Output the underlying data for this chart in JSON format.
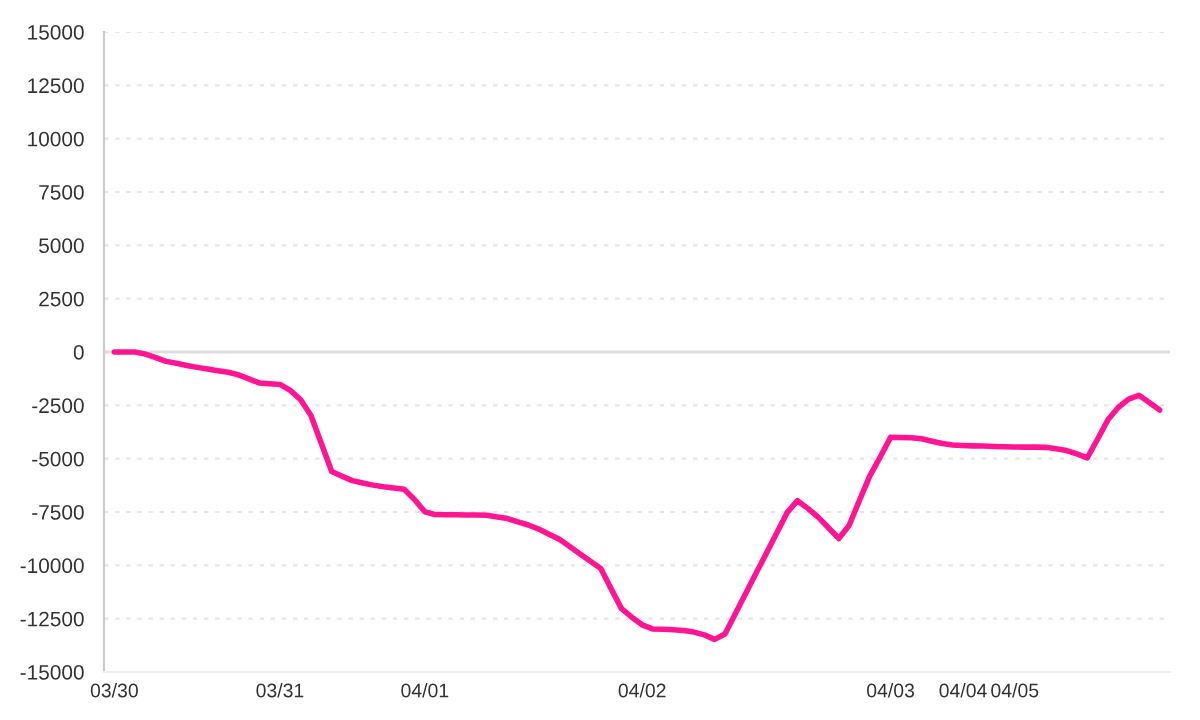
{
  "chart_data": {
    "type": "line",
    "categories": [
      "03/30",
      null,
      null,
      null,
      null,
      null,
      null,
      null,
      null,
      null,
      null,
      null,
      null,
      null,
      null,
      null,
      "03/31",
      null,
      null,
      null,
      null,
      null,
      null,
      null,
      null,
      null,
      null,
      null,
      null,
      null,
      "04/01",
      null,
      null,
      null,
      null,
      null,
      null,
      null,
      null,
      null,
      null,
      null,
      null,
      null,
      null,
      null,
      null,
      null,
      null,
      null,
      null,
      "04/02",
      null,
      null,
      null,
      null,
      null,
      null,
      null,
      null,
      null,
      null,
      null,
      null,
      null,
      null,
      null,
      null,
      null,
      null,
      null,
      null,
      null,
      null,
      null,
      "04/03",
      null,
      null,
      null,
      null,
      null,
      null,
      "04/04",
      null,
      null,
      null,
      null,
      "04/05",
      null,
      null,
      null,
      null,
      null,
      null,
      null,
      null,
      null,
      null,
      null,
      null,
      null,
      null
    ],
    "series": [
      {
        "color": "#ff1493",
        "values": [
          0,
          0,
          0,
          -100,
          -260,
          -440,
          -530,
          -630,
          -720,
          -800,
          -880,
          -950,
          -1070,
          -1260,
          -1450,
          -1490,
          -1520,
          -1800,
          -2240,
          -2980,
          -4290,
          -5600,
          -5820,
          -6030,
          -6140,
          -6240,
          -6320,
          -6380,
          -6430,
          -6910,
          -7490,
          -7620,
          -7630,
          -7630,
          -7640,
          -7640,
          -7650,
          -7730,
          -7810,
          -7960,
          -8110,
          -8300,
          -8540,
          -8780,
          -9120,
          -9470,
          -9810,
          -10150,
          -11100,
          -12030,
          -12430,
          -12790,
          -12980,
          -13000,
          -13020,
          -13050,
          -13130,
          -13260,
          -13470,
          -13220,
          -12270,
          -11320,
          -10370,
          -9430,
          -8480,
          -7530,
          -6970,
          -7330,
          -7740,
          -8240,
          -8740,
          -8120,
          -6950,
          -5810,
          -4920,
          -4000,
          -4010,
          -4020,
          -4070,
          -4180,
          -4290,
          -4360,
          -4380,
          -4400,
          -4410,
          -4430,
          -4440,
          -4450,
          -4460,
          -4460,
          -4470,
          -4540,
          -4620,
          -4780,
          -4960,
          -4090,
          -3180,
          -2600,
          -2210,
          -2030,
          -2370,
          -2720
        ]
      }
    ],
    "ylim": [
      -15000,
      15000
    ],
    "yticks": [
      -15000,
      -12500,
      -10000,
      -7500,
      -5000,
      -2500,
      0,
      2500,
      5000,
      7500,
      10000,
      12500,
      15000
    ],
    "grid": "y",
    "ref_lines": [
      {
        "axis": "y",
        "value": 0,
        "color": "#dddddd"
      }
    ],
    "marker": "none",
    "line_style": "solid"
  }
}
